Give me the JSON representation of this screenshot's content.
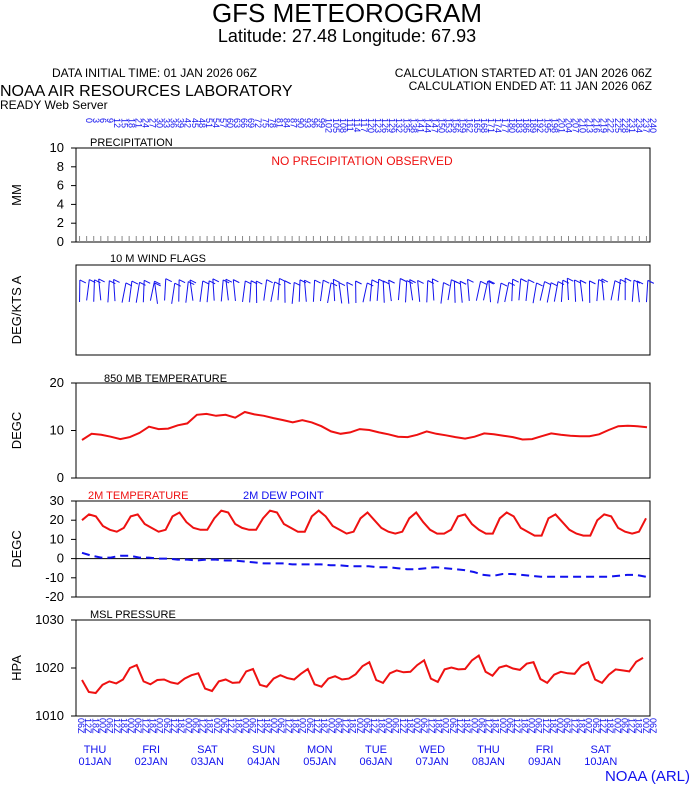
{
  "header": {
    "title": "GFS METEOROGRAM",
    "subtitle": "Latitude: 27.48 Longitude:  67.93",
    "initial_time": "DATA INITIAL TIME: 01 JAN 2026 06Z",
    "calc_started": "CALCULATION STARTED AT: 01 JAN 2026 06Z",
    "calc_ended": "CALCULATION ENDED AT: 11 JAN 2026 06Z",
    "lab": "NOAA AIR RESOURCES LABORATORY",
    "server": "READY Web Server",
    "footer": "NOAA (ARL)"
  },
  "colors": {
    "red": "#ee1111",
    "blue": "#1111ee",
    "black": "#000000"
  },
  "chart_data": [
    {
      "type": "line",
      "title": "PRECIPITATION",
      "ylabel": "MM",
      "ylim": [
        0,
        10
      ],
      "yticks": [
        0,
        2,
        4,
        6,
        8,
        10
      ],
      "annotation": "NO PRECIPITATION OBSERVED",
      "series": []
    },
    {
      "type": "line",
      "title": "10 M  WIND FLAGS",
      "ylabel": "DEG/KTS  A",
      "series": []
    },
    {
      "type": "line",
      "title": "850 MB  TEMPERATURE",
      "ylabel": "DEGC",
      "ylim": [
        0,
        20
      ],
      "yticks": [
        0,
        10,
        20
      ],
      "series": [
        {
          "values": [
            8,
            9.3,
            9.1,
            8.7,
            8.2,
            8.6,
            9.5,
            10.8,
            10.3,
            10.4,
            11.1,
            11.5,
            13.3,
            13.5,
            13.1,
            13.3,
            12.7,
            13.9,
            13.4,
            13.1,
            12.6,
            12.2,
            11.7,
            12.2,
            11.7,
            10.9,
            9.8,
            9.3,
            9.6,
            10.3,
            10.1,
            9.6,
            9.2,
            8.7,
            8.6,
            9.1,
            9.8,
            9.3,
            9.0,
            8.6,
            8.3,
            8.7,
            9.4,
            9.2,
            8.9,
            8.6,
            8.1,
            8.2,
            8.8,
            9.4,
            9.1,
            8.9,
            8.8,
            8.8,
            9.2,
            10.1,
            10.9,
            11.0,
            10.9,
            10.7
          ]
        }
      ]
    },
    {
      "type": "line",
      "title": "",
      "ylabel": "DEGC",
      "ylim": [
        -20,
        30
      ],
      "yticks": [
        -20,
        -10,
        0,
        10,
        20,
        30
      ],
      "series": [
        {
          "name": "2M TEMPERATURE",
          "color": "#ee1111",
          "style": "solid",
          "values": [
            20,
            23,
            22,
            17,
            15,
            14,
            16,
            22,
            23,
            18,
            16,
            14,
            15,
            22,
            24,
            19,
            16,
            15,
            15,
            21,
            25,
            24,
            18,
            16,
            15,
            15,
            21,
            25,
            24,
            18,
            16,
            14,
            14,
            22,
            25,
            22,
            17,
            15,
            13,
            14,
            21,
            24,
            20,
            16,
            14,
            13,
            14,
            21,
            24,
            19,
            15,
            13,
            13,
            15,
            22,
            23,
            18,
            15,
            13,
            13,
            21,
            24,
            22,
            16,
            14,
            12,
            12,
            21,
            23,
            19,
            15,
            13,
            12,
            12,
            20,
            23,
            22,
            16,
            14,
            13,
            14,
            21
          ]
        },
        {
          "name": "2M  DEW POINT",
          "color": "#1111ee",
          "style": "dashed",
          "values": [
            3,
            1.5,
            0.5,
            0.5,
            1.5,
            1.5,
            0.5,
            0.5,
            0,
            0,
            -0.5,
            -0.5,
            -1,
            -0.5,
            -0.5,
            -1,
            -1,
            -1.5,
            -2,
            -2.5,
            -2.5,
            -2.5,
            -3,
            -3,
            -3,
            -3,
            -3.5,
            -3.5,
            -4,
            -4,
            -4,
            -4.5,
            -4.5,
            -5,
            -5.5,
            -5.5,
            -5,
            -4.5,
            -5,
            -5.5,
            -6,
            -7,
            -8.5,
            -9,
            -8,
            -8,
            -8.5,
            -9,
            -9.5,
            -9.5,
            -9.5,
            -9.5,
            -9.5,
            -9.5,
            -9.5,
            -9.5,
            -9,
            -8.5,
            -8.5,
            -9.5
          ]
        }
      ]
    },
    {
      "type": "line",
      "title": "MSL PRESSURE",
      "ylabel": "HPA",
      "ylim": [
        1010,
        1030
      ],
      "yticks": [
        1010,
        1020,
        1030
      ],
      "series": [
        {
          "values": [
            1017.5,
            1015,
            1014.8,
            1016.5,
            1017.2,
            1016.8,
            1017.6,
            1020,
            1020.6,
            1017.2,
            1016.6,
            1017.5,
            1017.6,
            1017,
            1016.7,
            1017.8,
            1018.5,
            1018.9,
            1015.7,
            1015.2,
            1017.2,
            1017.6,
            1016.9,
            1017,
            1019.3,
            1019.8,
            1016.5,
            1016.1,
            1017.8,
            1018.5,
            1017.9,
            1017.6,
            1018.8,
            1019.8,
            1016.6,
            1016.1,
            1017.8,
            1018.3,
            1017.6,
            1017.8,
            1018.7,
            1020.4,
            1021.2,
            1017.5,
            1016.9,
            1018.9,
            1019.5,
            1019.1,
            1019.2,
            1020.6,
            1021.6,
            1017.8,
            1017.1,
            1019.7,
            1020.1,
            1019.7,
            1019.8,
            1021.6,
            1022.6,
            1019.2,
            1018.4,
            1020.1,
            1020.5,
            1019.9,
            1019.6,
            1020.9,
            1021.2,
            1017.7,
            1016.9,
            1018.6,
            1019.2,
            1018.9,
            1018.8,
            1020.5,
            1021.2,
            1017.6,
            1016.9,
            1018.6,
            1019.7,
            1019.5,
            1019.3,
            1021.3,
            1022.1
          ]
        }
      ]
    }
  ],
  "time_axis": {
    "hour_labels": [
      "06Z",
      "12Z",
      "18Z",
      "00Z"
    ],
    "days": [
      {
        "day": "THU",
        "date": "01JAN"
      },
      {
        "day": "FRI",
        "date": "02JAN"
      },
      {
        "day": "SAT",
        "date": "03JAN"
      },
      {
        "day": "SUN",
        "date": "04JAN"
      },
      {
        "day": "MON",
        "date": "05JAN"
      },
      {
        "day": "TUE",
        "date": "06JAN"
      },
      {
        "day": "WED",
        "date": "07JAN"
      },
      {
        "day": "THU",
        "date": "08JAN"
      },
      {
        "day": "FRI",
        "date": "09JAN"
      },
      {
        "day": "SAT",
        "date": "10JAN"
      }
    ],
    "forecast_hours_max": 240,
    "forecast_hours_step": 3
  }
}
